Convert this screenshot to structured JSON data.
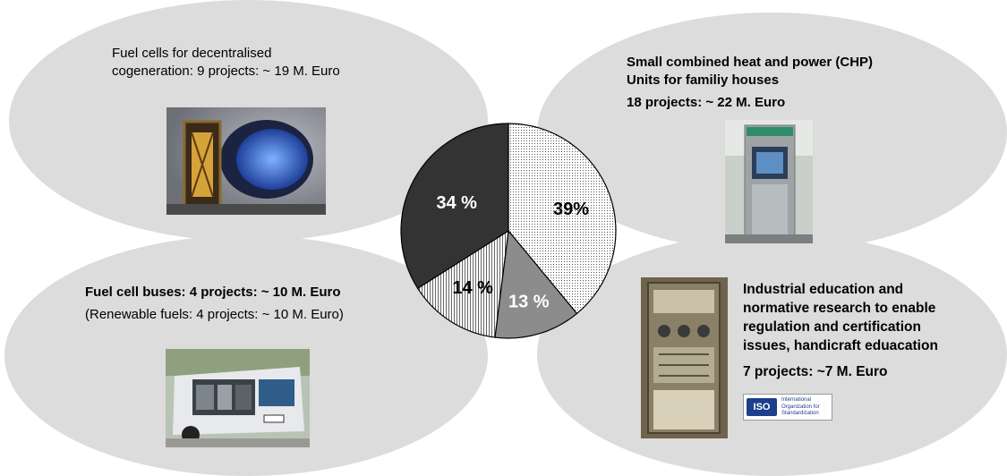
{
  "chart_data": {
    "type": "pie",
    "slices": [
      {
        "label": "39%",
        "value": 39,
        "fill": "dots"
      },
      {
        "label": "13 %",
        "value": 13,
        "fill": "#8c8c8c"
      },
      {
        "label": "14 %",
        "value": 14,
        "fill": "vertical-lines"
      },
      {
        "label": "34 %",
        "value": 34,
        "fill": "#333333"
      }
    ],
    "start_angle_deg": 0,
    "direction": "clockwise"
  },
  "callouts": {
    "top_left": {
      "line1": "Fuel cells for decentralised",
      "line2": "cogeneration: 9 projects: ~ 19 M. Euro"
    },
    "top_right": {
      "line1": "Small combined heat and power (CHP)",
      "line2": "Units for familiy houses",
      "line3": "18 projects: ~ 22 M. Euro"
    },
    "bottom_left": {
      "line1": "Fuel cell buses: 4 projects: ~ 10 M. Euro",
      "line2": "(Renewable fuels: 4 projects: ~ 10 M. Euro)"
    },
    "bottom_right": {
      "line1": "Industrial education and",
      "line2": "normative research to enable",
      "line3": "regulation and certification",
      "line4": "issues, handicraft eduacation",
      "line5": "7 projects: ~7 M. Euro"
    }
  },
  "logo": {
    "badge": "ISO",
    "name": "International Organization for Standardization"
  },
  "colors": {
    "ellipse": "#dcdcdc",
    "dark_slice": "#333333",
    "gray_slice": "#8c8c8c",
    "iso_blue": "#1d3f8c"
  }
}
